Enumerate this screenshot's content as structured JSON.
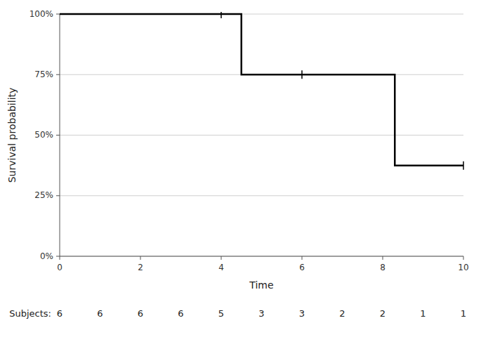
{
  "chart_data": {
    "type": "line",
    "xlabel": "Time",
    "ylabel": "Survival probability",
    "x": [
      0,
      4.5,
      4.5,
      8.3,
      8.3,
      10
    ],
    "values": [
      1.0,
      1.0,
      0.75,
      0.75,
      0.375,
      0.375
    ],
    "color": "#000000",
    "censor_x": [
      4.0,
      6.0,
      10.0
    ],
    "censor_y": [
      1.0,
      0.75,
      0.375
    ],
    "xlim": [
      0,
      10
    ],
    "ylim": [
      0,
      1
    ],
    "xticks": [
      0,
      2,
      4,
      6,
      8,
      10
    ],
    "yticks": [
      {
        "value": 0.0,
        "label": "0%"
      },
      {
        "value": 0.25,
        "label": "25%"
      },
      {
        "value": 0.5,
        "label": "50%"
      },
      {
        "value": 0.75,
        "label": "75%"
      },
      {
        "value": 1.0,
        "label": "100%"
      }
    ],
    "grid": true,
    "subjects_label": "Subjects:",
    "subjects_x": [
      0,
      1,
      2,
      3,
      4,
      5,
      6,
      7,
      8,
      9,
      10
    ],
    "subjects_counts": [
      6,
      6,
      6,
      6,
      5,
      3,
      3,
      2,
      2,
      1,
      1
    ]
  }
}
